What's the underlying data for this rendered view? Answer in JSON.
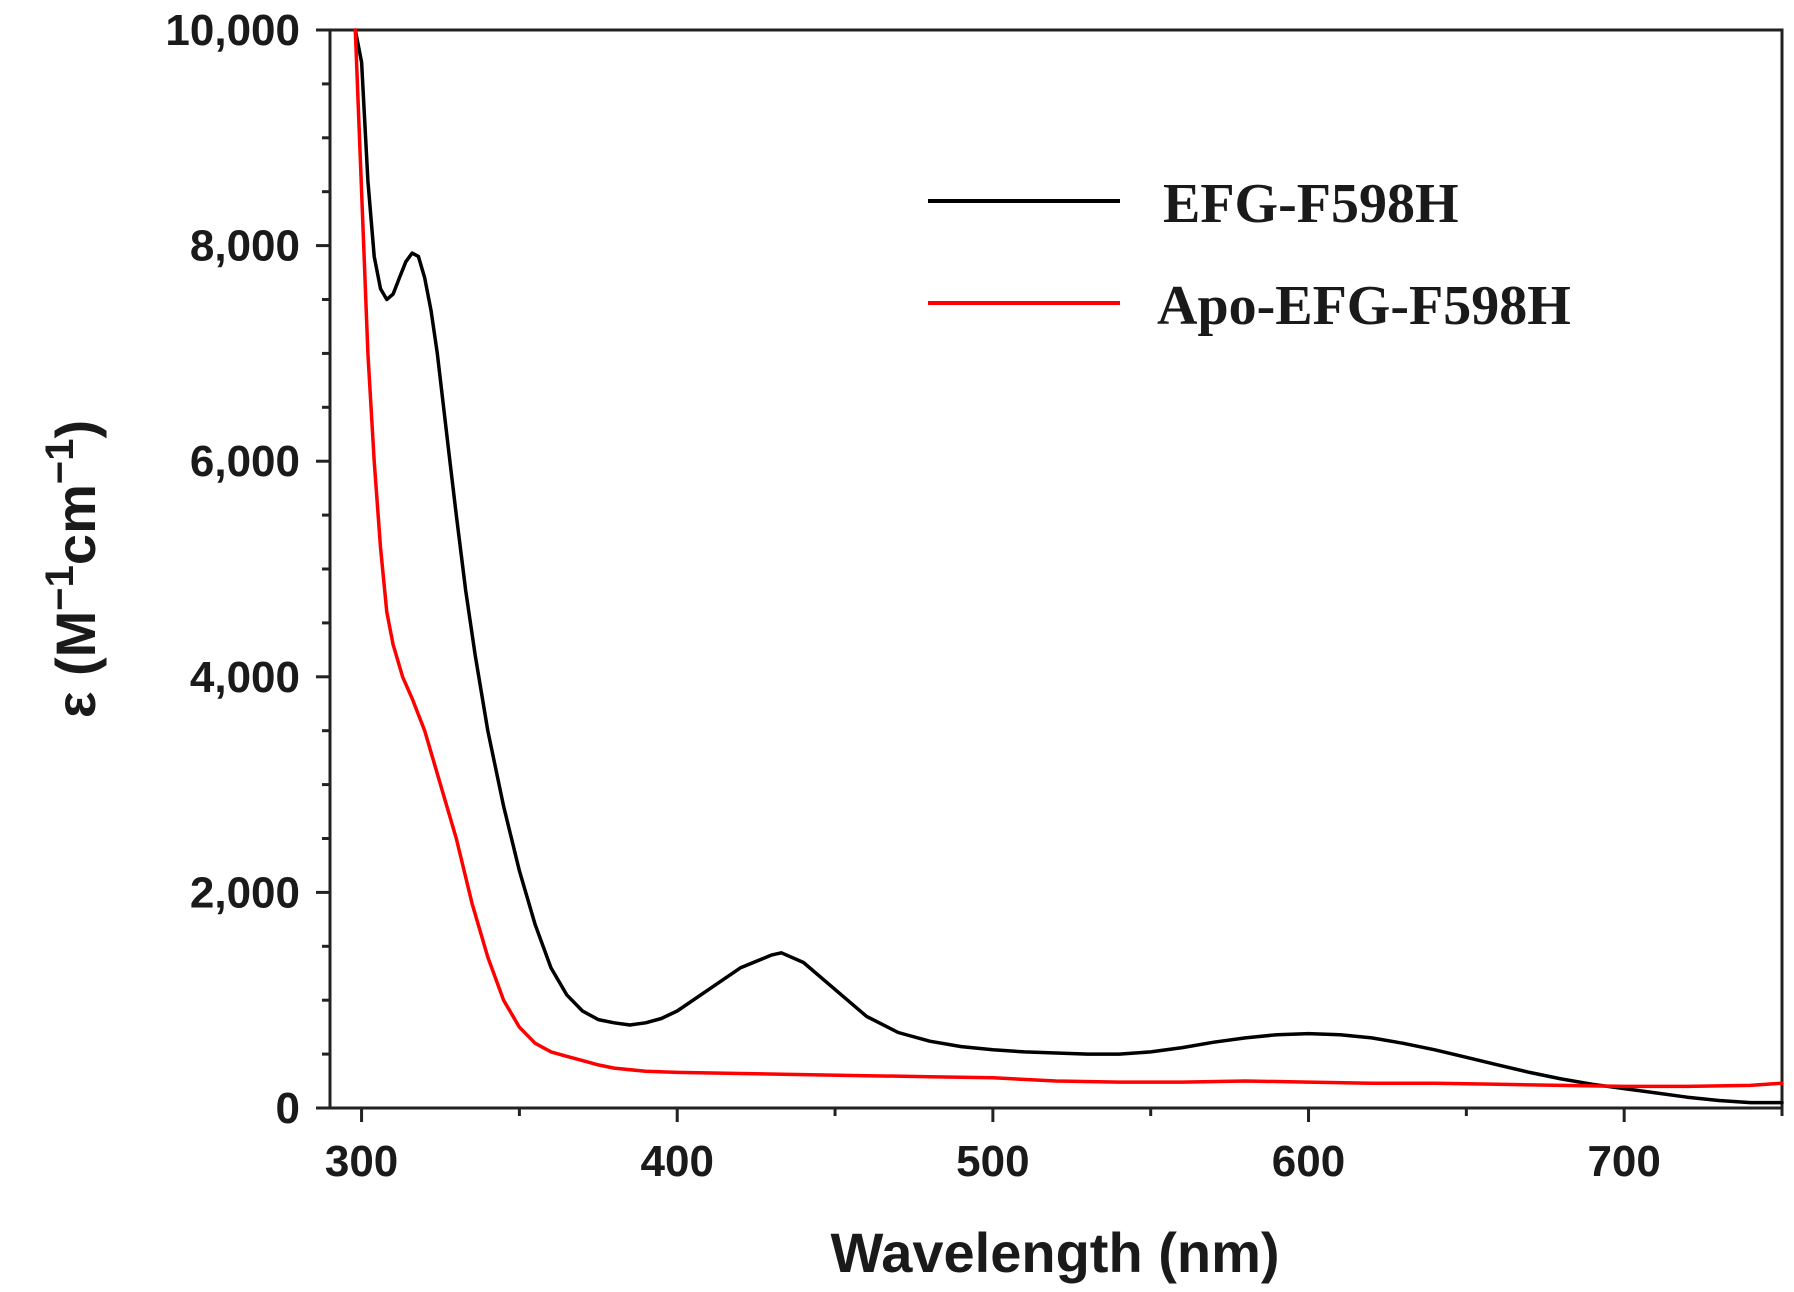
{
  "chart_data": {
    "type": "line",
    "title": "",
    "xlabel": "Wavelength (nm)",
    "ylabel": "ε (M⁻¹cm⁻¹)",
    "ylabel_parts": {
      "prefix": "ε (M",
      "sup1": "−1",
      "mid": "cm",
      "sup2": "−1",
      "suffix": ")"
    },
    "xlim": [
      290,
      750
    ],
    "ylim": [
      0,
      10000
    ],
    "xticks": [
      300,
      400,
      500,
      600,
      700
    ],
    "xtick_labels": [
      "300",
      "400",
      "500",
      "600",
      "700"
    ],
    "yticks": [
      0,
      2000,
      4000,
      6000,
      8000,
      10000
    ],
    "ytick_labels": [
      "0",
      "2,000",
      "4,000",
      "6,000",
      "8,000",
      "10,000"
    ],
    "grid": false,
    "legend_position": "top-right",
    "series": [
      {
        "name": "EFG-F598H",
        "color": "#000000",
        "x": [
          298,
          300,
          302,
          304,
          306,
          308,
          310,
          312,
          314,
          316,
          318,
          320,
          322,
          324,
          326,
          328,
          330,
          333,
          336,
          340,
          345,
          350,
          355,
          360,
          365,
          370,
          375,
          380,
          385,
          390,
          395,
          400,
          410,
          420,
          430,
          433,
          440,
          450,
          460,
          470,
          480,
          490,
          500,
          510,
          520,
          530,
          540,
          550,
          560,
          570,
          580,
          590,
          600,
          610,
          620,
          630,
          640,
          650,
          660,
          670,
          680,
          690,
          700,
          710,
          720,
          730,
          740,
          750
        ],
        "y": [
          10000,
          9700,
          8600,
          7900,
          7600,
          7500,
          7550,
          7700,
          7850,
          7930,
          7900,
          7700,
          7400,
          7000,
          6500,
          6000,
          5500,
          4800,
          4200,
          3500,
          2800,
          2200,
          1700,
          1300,
          1050,
          900,
          820,
          790,
          770,
          790,
          830,
          900,
          1100,
          1300,
          1420,
          1440,
          1350,
          1100,
          850,
          700,
          620,
          570,
          540,
          520,
          510,
          500,
          500,
          520,
          560,
          610,
          650,
          680,
          690,
          680,
          650,
          600,
          540,
          470,
          400,
          330,
          270,
          220,
          180,
          140,
          100,
          70,
          50,
          50
        ]
      },
      {
        "name": "Apo-EFG-F598H",
        "color": "#ff0000",
        "x": [
          298,
          300,
          302,
          304,
          306,
          308,
          310,
          313,
          316,
          320,
          325,
          330,
          335,
          340,
          345,
          350,
          355,
          360,
          365,
          370,
          375,
          380,
          390,
          400,
          420,
          440,
          460,
          480,
          500,
          520,
          540,
          560,
          580,
          600,
          620,
          640,
          660,
          680,
          700,
          720,
          740,
          750
        ],
        "y": [
          10000,
          8500,
          7000,
          6000,
          5200,
          4600,
          4300,
          4000,
          3800,
          3500,
          3000,
          2500,
          1900,
          1400,
          1000,
          750,
          600,
          520,
          480,
          440,
          400,
          370,
          340,
          330,
          320,
          310,
          300,
          290,
          280,
          250,
          240,
          240,
          250,
          240,
          230,
          230,
          220,
          210,
          200,
          200,
          210,
          230
        ]
      }
    ]
  }
}
